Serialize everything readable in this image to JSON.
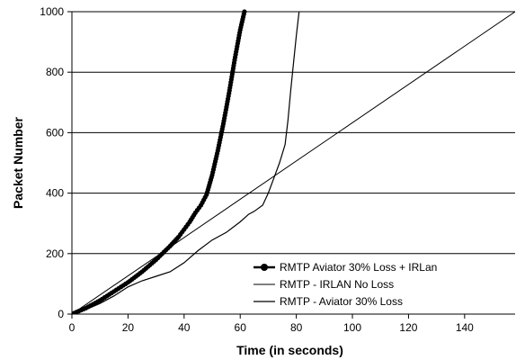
{
  "chart_data": {
    "type": "line",
    "xlabel": "Time (in seconds)",
    "ylabel": "Packet Number",
    "xlim": [
      0,
      158
    ],
    "ylim": [
      0,
      1000
    ],
    "x_ticks": [
      0,
      20,
      40,
      60,
      80,
      100,
      120,
      140
    ],
    "y_ticks": [
      0,
      200,
      400,
      600,
      800,
      1000
    ],
    "grid": "horizontal",
    "legend_position": "bottom-right",
    "series": [
      {
        "name": "RMTP Aviator 30% Loss + IRLan",
        "style": "thick line with circle markers",
        "x": [
          0,
          5,
          10,
          15,
          20,
          25,
          30,
          35,
          38,
          40,
          42,
          44,
          46,
          48,
          50,
          52,
          54,
          56,
          58,
          60,
          61.5
        ],
        "y": [
          0,
          20,
          45,
          75,
          105,
          140,
          180,
          225,
          255,
          280,
          305,
          335,
          360,
          395,
          460,
          540,
          630,
          730,
          840,
          940,
          1000
        ]
      },
      {
        "name": "RMTP - IRLAN No Loss",
        "style": "thin straight line",
        "x": [
          0,
          158
        ],
        "y": [
          0,
          1000
        ]
      },
      {
        "name": "RMTP - Aviator 30% Loss",
        "style": "thin line",
        "x": [
          0,
          5,
          10,
          15,
          20,
          25,
          30,
          35,
          40,
          45,
          50,
          55,
          60,
          63,
          65,
          68,
          70,
          72,
          74,
          76,
          77,
          78,
          79,
          80,
          81
        ],
        "y": [
          0,
          15,
          35,
          60,
          90,
          110,
          125,
          140,
          170,
          210,
          245,
          270,
          305,
          330,
          340,
          360,
          400,
          450,
          500,
          560,
          640,
          740,
          830,
          920,
          1000
        ]
      }
    ]
  }
}
